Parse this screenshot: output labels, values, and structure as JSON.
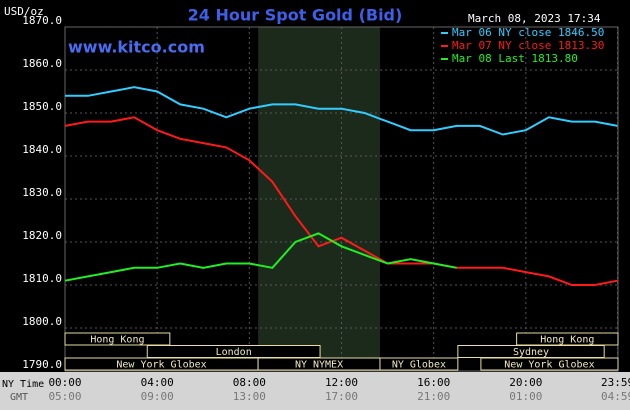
{
  "chart_data": {
    "type": "line",
    "title": "24 Hour Spot Gold (Bid)",
    "unit_label": "USD/oz",
    "timestamp": "March 08, 2023 17:34",
    "watermark": "www.kitco.com",
    "x_axis_label": "NY Time",
    "x2_axis_label": "GMT",
    "x": [
      0,
      1,
      2,
      3,
      4,
      5,
      6,
      7,
      8,
      9,
      10,
      11,
      12,
      13,
      14,
      15,
      16,
      17,
      18,
      19,
      20,
      21,
      22,
      23,
      23.98
    ],
    "xlim": [
      0,
      24
    ],
    "xticks": [
      {
        "value": 0,
        "label": "00:00"
      },
      {
        "value": 4,
        "label": "04:00"
      },
      {
        "value": 8,
        "label": "08:00"
      },
      {
        "value": 12,
        "label": "12:00"
      },
      {
        "value": 16,
        "label": "16:00"
      },
      {
        "value": 20,
        "label": "20:00"
      },
      {
        "value": 23.98,
        "label": "23:59"
      }
    ],
    "x2ticks": [
      {
        "value": 0,
        "label": "05:00"
      },
      {
        "value": 4,
        "label": "09:00"
      },
      {
        "value": 8,
        "label": "13:00"
      },
      {
        "value": 12,
        "label": "17:00"
      },
      {
        "value": 16,
        "label": "21:00"
      },
      {
        "value": 20,
        "label": "01:00"
      },
      {
        "value": 23.98,
        "label": "04:59"
      }
    ],
    "ylim": [
      1790,
      1870
    ],
    "yticks": [
      {
        "value": 1790,
        "label": "1790.0"
      },
      {
        "value": 1800,
        "label": "1800.0"
      },
      {
        "value": 1810,
        "label": "1810.0"
      },
      {
        "value": 1820,
        "label": "1820.0"
      },
      {
        "value": 1830,
        "label": "1830.0"
      },
      {
        "value": 1840,
        "label": "1840.0"
      },
      {
        "value": 1850,
        "label": "1850.0"
      },
      {
        "value": 1860,
        "label": "1860.0"
      },
      {
        "value": 1870,
        "label": "1870.0"
      }
    ],
    "grid": true,
    "legend": "top-right",
    "shade": [
      8.38,
      13.67
    ],
    "series": [
      {
        "name": "Mar 06 NY close 1846.50",
        "color": "#33ccff",
        "values": [
          1854,
          1854,
          1855,
          1856,
          1855,
          1852,
          1851,
          1849,
          1851,
          1852,
          1852,
          1851,
          1851,
          1850,
          1848,
          1846,
          1846,
          1847,
          1847,
          1845,
          1846,
          1849,
          1848,
          1848,
          1847
        ]
      },
      {
        "name": "Mar 07 NY close 1813.30",
        "color": "#ff1a1a",
        "values": [
          1847,
          1848,
          1848,
          1849,
          1846,
          1844,
          1843,
          1842,
          1839,
          1834,
          1826,
          1819,
          1821,
          1818,
          1815,
          1815,
          1815,
          1814,
          1814,
          1814,
          1813,
          1812,
          1810,
          1810,
          1811
        ]
      },
      {
        "name": "Mar 08 Last 1813.80",
        "color": "#22ee22",
        "values": [
          1811,
          1812,
          1813,
          1814,
          1814,
          1815,
          1814,
          1815,
          1815,
          1814,
          1820,
          1822,
          1819,
          1817,
          1815,
          1816,
          1815,
          1814,
          null,
          null,
          null,
          null,
          null,
          null,
          null
        ]
      }
    ],
    "sessions": [
      [
        {
          "label": "Hong Kong",
          "start": 0,
          "end": 4.55
        },
        {
          "label": "Hong Kong",
          "start": 19.6,
          "end": 24
        }
      ],
      [
        {
          "label": "London",
          "start": 3.57,
          "end": 11.07
        },
        {
          "label": "Sydney",
          "start": 17.05,
          "end": 23.4
        }
      ],
      [
        {
          "label": "New York Globex",
          "start": 0,
          "end": 8.38
        },
        {
          "label": "NY NYMEX",
          "start": 8.38,
          "end": 13.67
        },
        {
          "label": "NY Globex",
          "start": 13.67,
          "end": 17.05
        },
        {
          "label": "New York Globex",
          "start": 18.05,
          "end": 24
        }
      ]
    ]
  }
}
